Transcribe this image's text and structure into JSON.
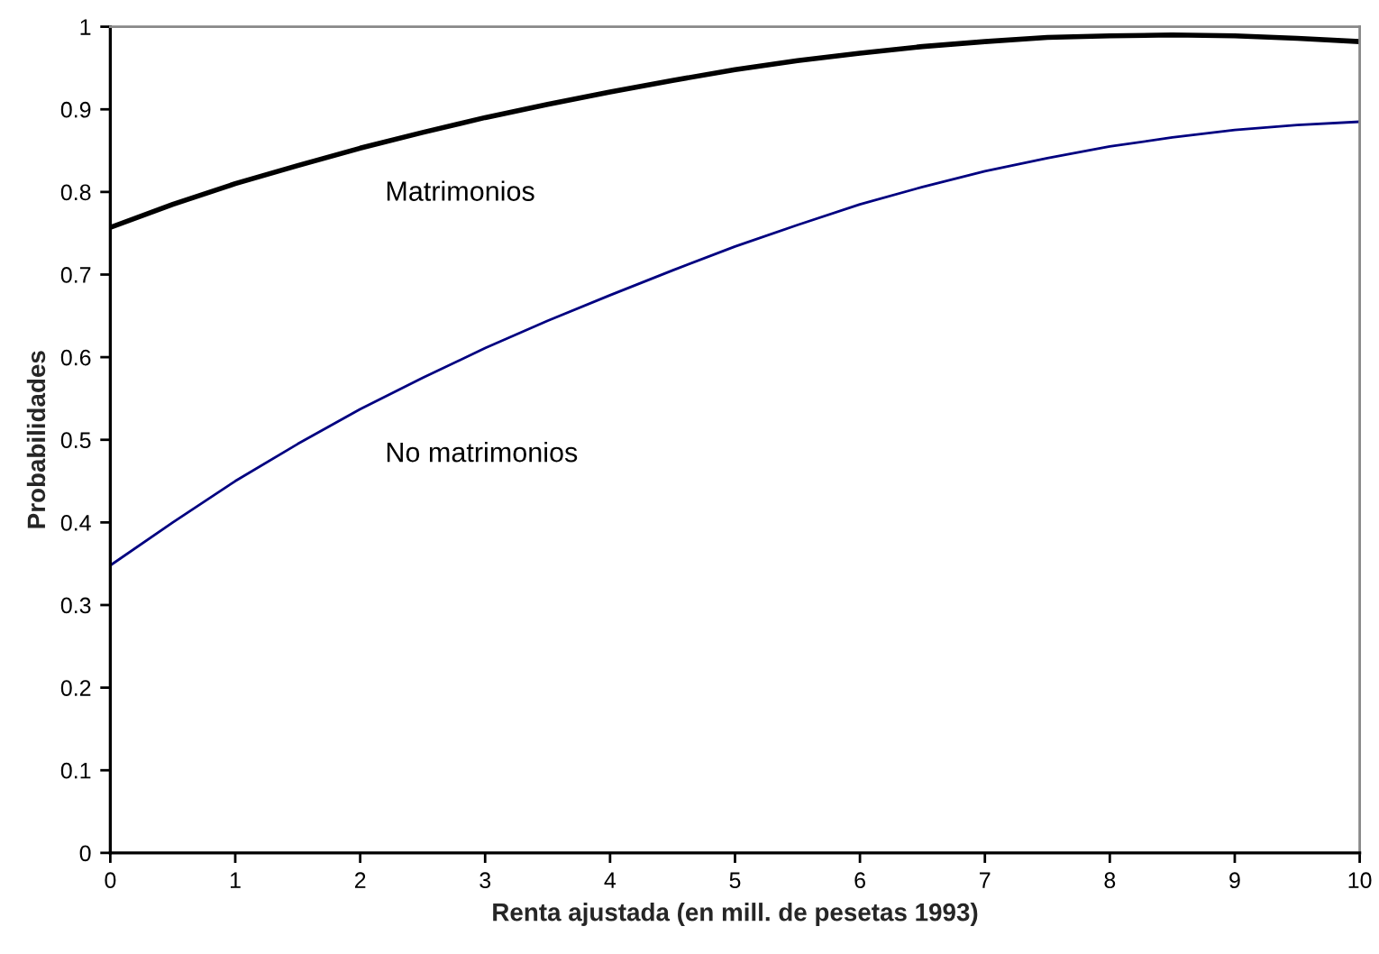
{
  "chart_data": {
    "type": "line",
    "xlabel": "Renta ajustada (en mill. de pesetas 1993)",
    "ylabel": "Probabilidades",
    "x": [
      0,
      0.5,
      1,
      1.5,
      2,
      2.5,
      3,
      3.5,
      4,
      4.5,
      5,
      5.5,
      6,
      6.5,
      7,
      7.5,
      8,
      8.5,
      9,
      9.5,
      10
    ],
    "series": [
      {
        "name": "Matrimonios",
        "color": "#000000",
        "values": [
          0.757,
          0.785,
          0.81,
          0.832,
          0.853,
          0.872,
          0.89,
          0.906,
          0.921,
          0.935,
          0.948,
          0.959,
          0.968,
          0.976,
          0.982,
          0.987,
          0.989,
          0.99,
          0.989,
          0.986,
          0.982
        ]
      },
      {
        "name": "No matrimonios",
        "color": "#000080",
        "values": [
          0.348,
          0.4,
          0.45,
          0.495,
          0.537,
          0.575,
          0.611,
          0.644,
          0.675,
          0.705,
          0.734,
          0.76,
          0.785,
          0.806,
          0.825,
          0.841,
          0.855,
          0.866,
          0.875,
          0.881,
          0.885
        ]
      }
    ],
    "xlim": [
      0,
      10
    ],
    "xticks": [
      0,
      1,
      2,
      3,
      4,
      5,
      6,
      7,
      8,
      9,
      10
    ],
    "ylim": [
      0,
      1
    ],
    "yticks": [
      0,
      0.1,
      0.2,
      0.3,
      0.4,
      0.5,
      0.6,
      0.7,
      0.8,
      0.9,
      1
    ],
    "grid": false,
    "legend": false,
    "line_style": "solid",
    "marker": "none"
  }
}
